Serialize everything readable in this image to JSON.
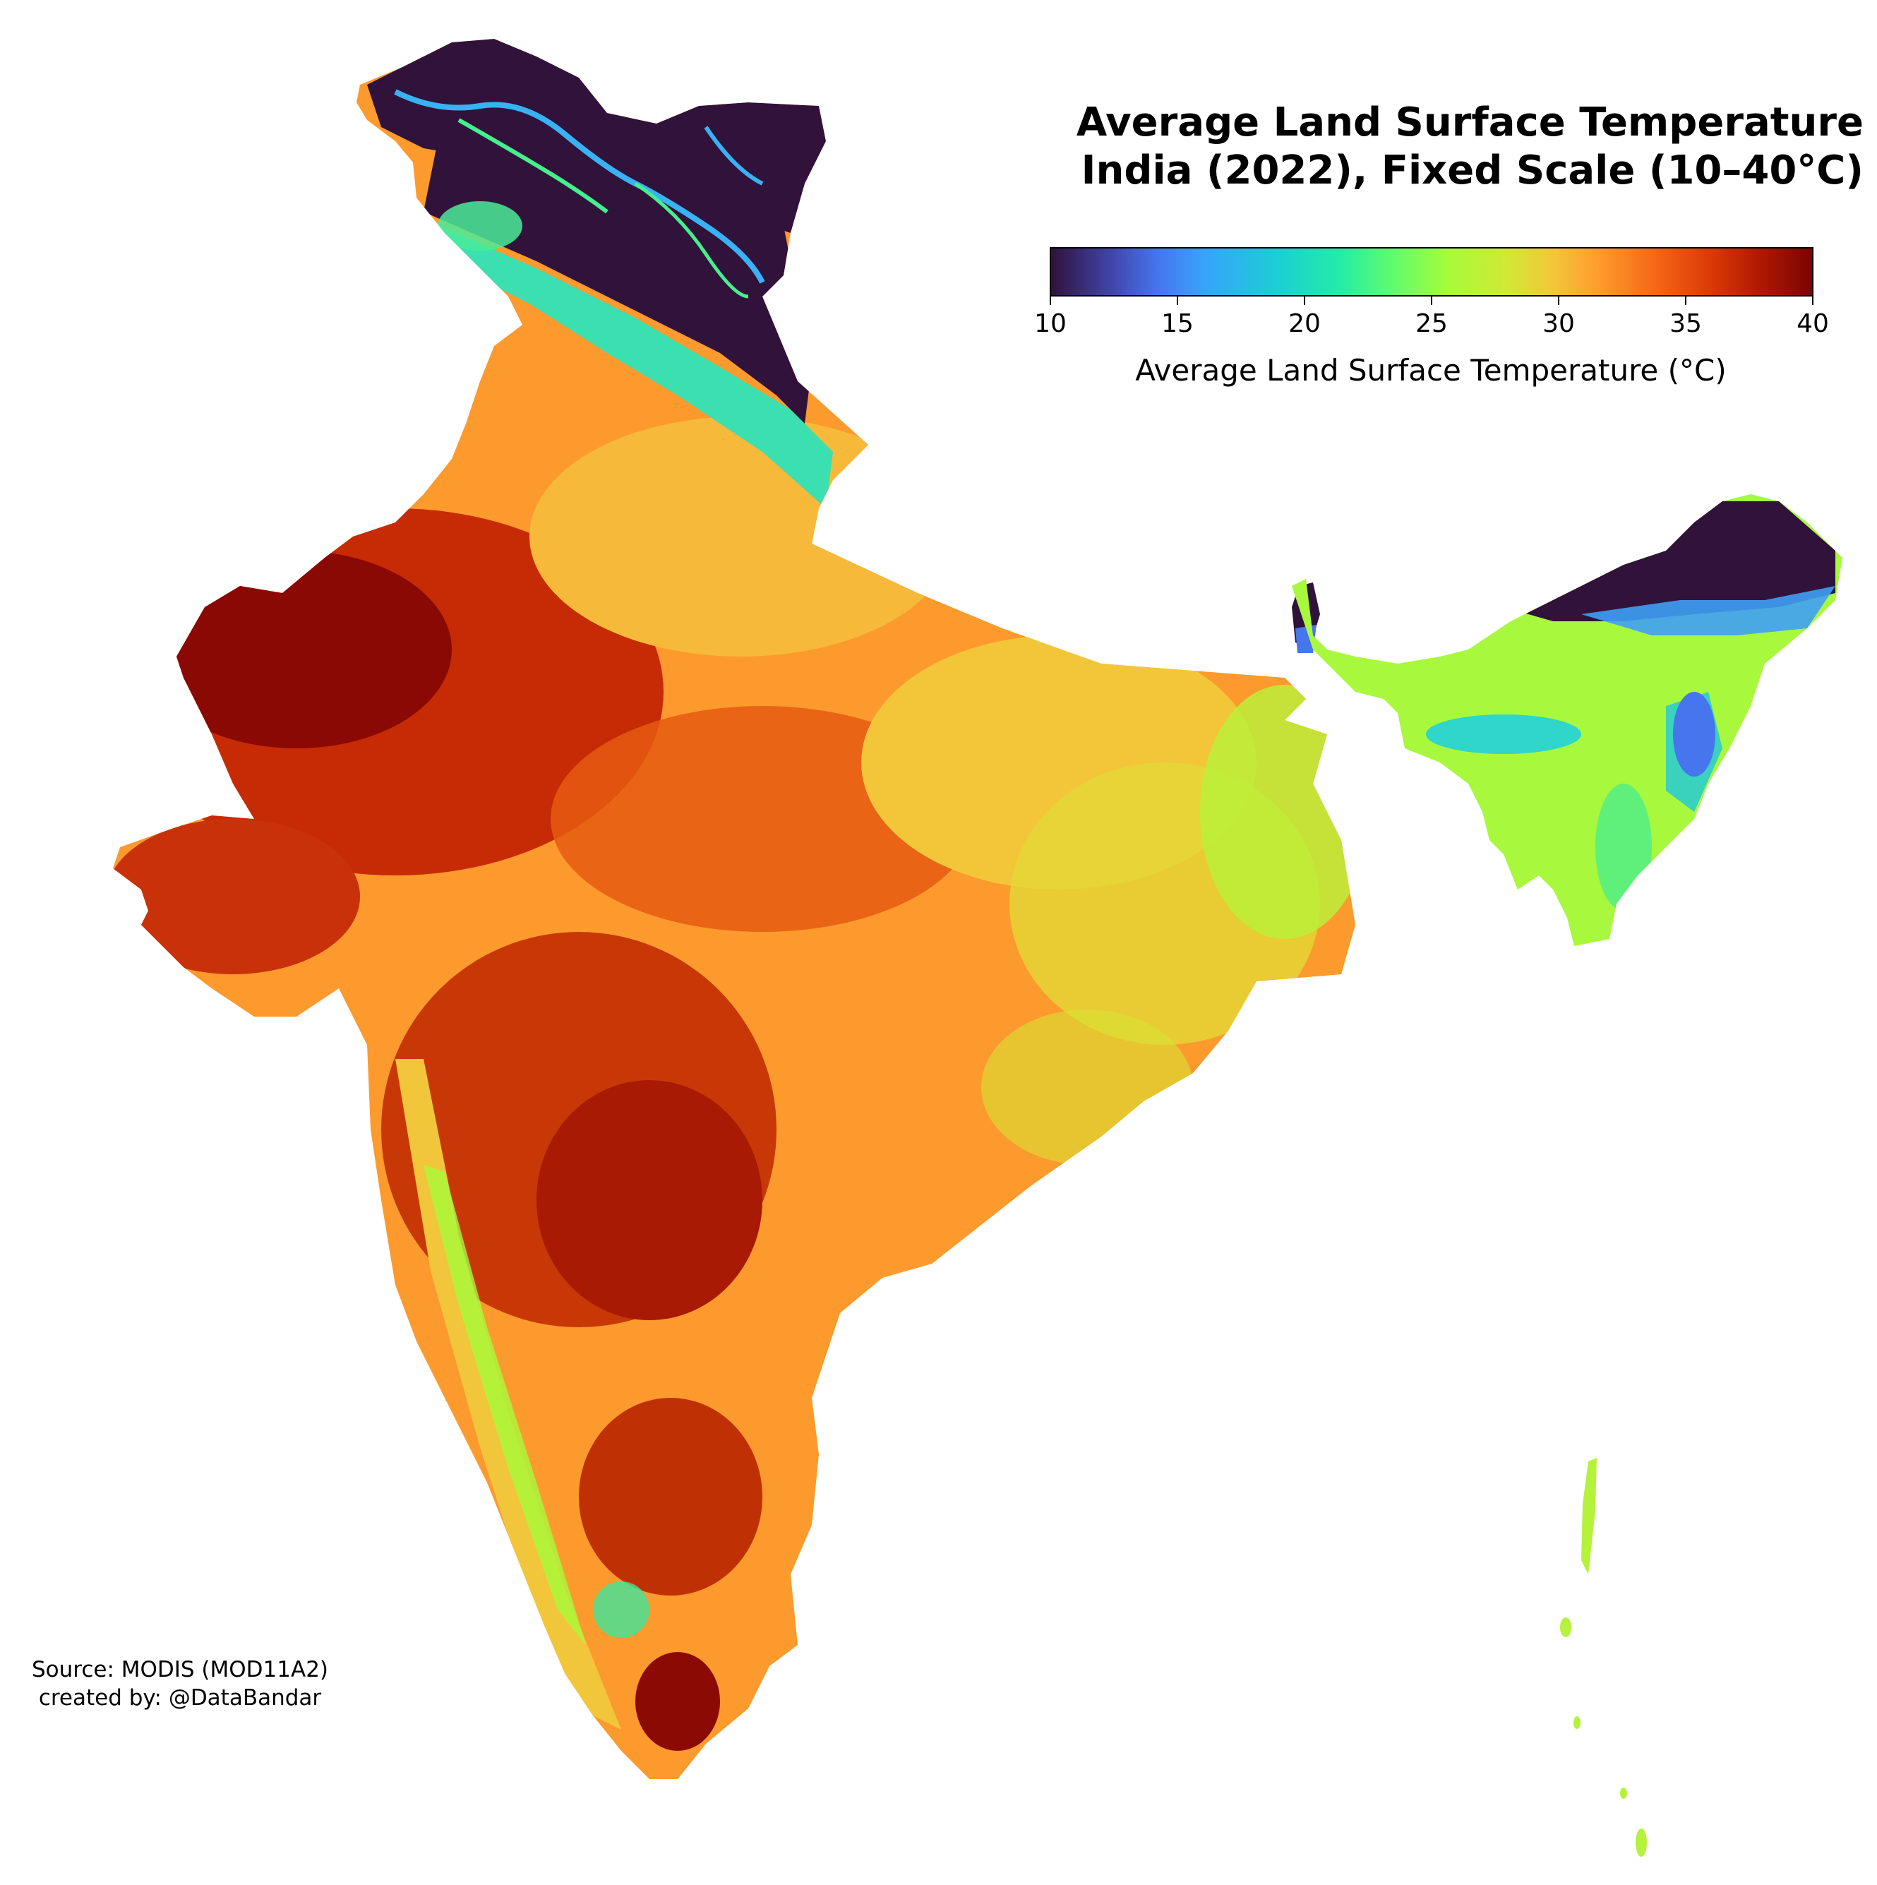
{
  "title": {
    "line1": "Average Land Surface Temperature",
    "line2": "India (2022), Fixed Scale (10–40°C)"
  },
  "colorbar": {
    "label": "Average Land Surface Temperature (°C)",
    "min": 10,
    "max": 40,
    "ticks": [
      "10",
      "15",
      "20",
      "25",
      "30",
      "35",
      "40"
    ],
    "colormap": "turbo",
    "colors": [
      "#30123b",
      "#4145ab",
      "#4675ed",
      "#39a2fc",
      "#1bcfd4",
      "#24eca6",
      "#61fc6c",
      "#a4fc3b",
      "#d1e834",
      "#f3c63a",
      "#fe9b2d",
      "#f36315",
      "#d93806",
      "#b11901",
      "#7a0402"
    ]
  },
  "credit": {
    "source": "Source: MODIS (MOD11A2)",
    "author": "created by: @DataBandar"
  }
}
